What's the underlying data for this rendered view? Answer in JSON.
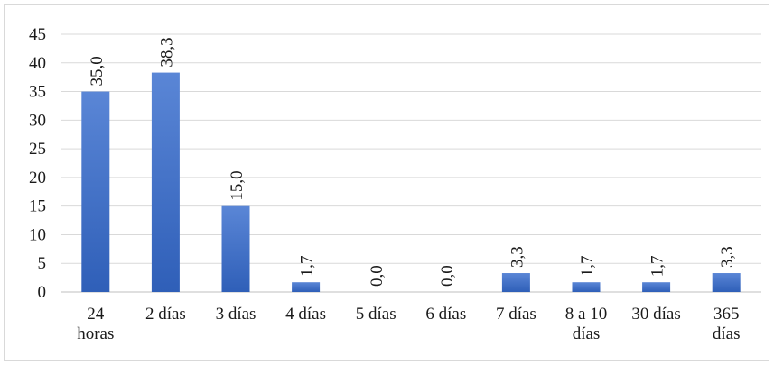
{
  "chart_data": {
    "type": "bar",
    "categories": [
      "24 horas",
      "2 días",
      "3 días",
      "4 días",
      "5 días",
      "6 días",
      "7 días",
      "8 a 10 días",
      "30 días",
      "365 días"
    ],
    "category_lines": [
      [
        "24",
        "horas"
      ],
      [
        "2 días"
      ],
      [
        "3 días"
      ],
      [
        "4 días"
      ],
      [
        "5 días"
      ],
      [
        "6 días"
      ],
      [
        "7 días"
      ],
      [
        "8 a 10",
        "días"
      ],
      [
        "30 días"
      ],
      [
        "365",
        "días"
      ]
    ],
    "values": [
      35.0,
      38.3,
      15.0,
      1.7,
      0.0,
      0.0,
      3.3,
      1.7,
      1.7,
      3.3
    ],
    "data_labels": [
      "35,0",
      "38,3",
      "15,0",
      "1,7",
      "0,0",
      "0,0",
      "3,3",
      "1,7",
      "1,7",
      "3,3"
    ],
    "y_ticks": [
      "0",
      "5",
      "10",
      "15",
      "20",
      "25",
      "30",
      "35",
      "40",
      "45"
    ],
    "ylim": [
      0,
      45
    ],
    "grid": true,
    "legend": "none",
    "colors": {
      "bar_top": "#5a86d6",
      "bar_bottom": "#2f5fb8"
    }
  }
}
